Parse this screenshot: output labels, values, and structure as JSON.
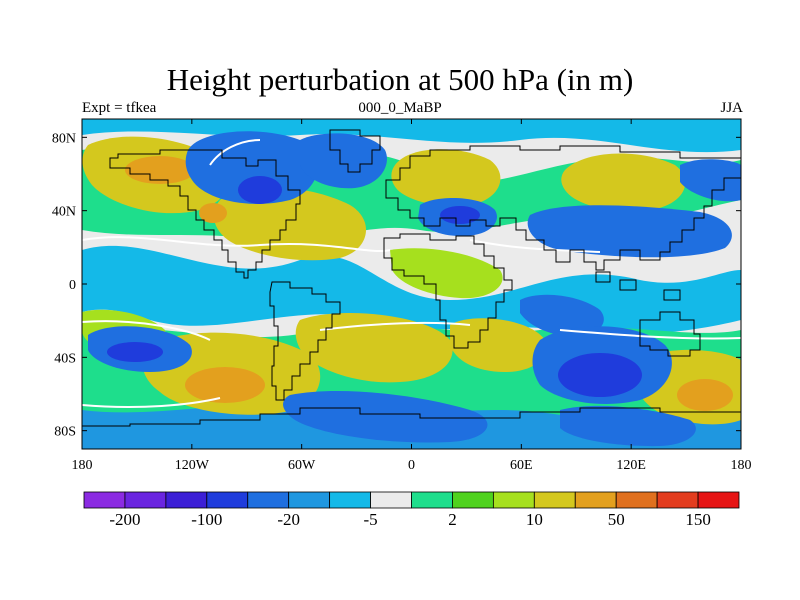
{
  "title": "Height perturbation at 500 hPa (in m)",
  "subtitles": {
    "left": "Expt = tfkea",
    "center": "000_0_MaBP",
    "right": "JJA"
  },
  "axes": {
    "lat_ticks": [
      {
        "value": 80,
        "label": "80N"
      },
      {
        "value": 40,
        "label": "40N"
      },
      {
        "value": 0,
        "label": "0"
      },
      {
        "value": -40,
        "label": "40S"
      },
      {
        "value": -80,
        "label": "80S"
      }
    ],
    "lon_ticks": [
      {
        "value": -180,
        "label": "180"
      },
      {
        "value": -120,
        "label": "120W"
      },
      {
        "value": -60,
        "label": "60W"
      },
      {
        "value": 0,
        "label": "0"
      },
      {
        "value": 60,
        "label": "60E"
      },
      {
        "value": 120,
        "label": "120E"
      },
      {
        "value": 180,
        "label": "180"
      }
    ],
    "lon_range": [
      -180,
      180
    ],
    "lat_range": [
      -90,
      90
    ]
  },
  "colorbar": {
    "colors": [
      "#8b2be2",
      "#6a25e0",
      "#3c1fd6",
      "#1f3cdc",
      "#1f6fe0",
      "#1f97e0",
      "#14b9e8",
      "#ebebeb",
      "#1ede8c",
      "#4fd21e",
      "#a6e01e",
      "#d4c81e",
      "#e3a01e",
      "#e0701e",
      "#e33c1e",
      "#e61414"
    ],
    "labels": [
      {
        "boundary": 1,
        "text": "-200"
      },
      {
        "boundary": 3,
        "text": "-100"
      },
      {
        "boundary": 5,
        "text": "-20"
      },
      {
        "boundary": 7,
        "text": "-5"
      },
      {
        "boundary": 9,
        "text": "2"
      },
      {
        "boundary": 11,
        "text": "10"
      },
      {
        "boundary": 13,
        "text": "50"
      },
      {
        "boundary": 15,
        "text": "150"
      }
    ]
  },
  "map_data": {
    "type": "filled_contour",
    "background_level_color": "#ebebeb",
    "features": [
      {
        "name": "north-pacific-high",
        "lon": -150,
        "lat": 60,
        "level": "50"
      },
      {
        "name": "north-america-low",
        "lon": -90,
        "lat": 58,
        "level": "-20"
      },
      {
        "name": "north-atlantic-high",
        "lon": -55,
        "lat": 40,
        "level": "50"
      },
      {
        "name": "europe-high",
        "lon": 15,
        "lat": 62,
        "level": "50"
      },
      {
        "name": "mediterranean-low",
        "lon": 25,
        "lat": 40,
        "level": "-20"
      },
      {
        "name": "siberia-high",
        "lon": 88,
        "lat": 62,
        "level": "50"
      },
      {
        "name": "east-asia-low",
        "lon": 100,
        "lat": 40,
        "level": "-20"
      },
      {
        "name": "south-pacific-high",
        "lon": -130,
        "lat": -55,
        "level": "50"
      },
      {
        "name": "south-atlantic-high",
        "lon": -10,
        "lat": -50,
        "level": "50"
      },
      {
        "name": "south-indian-low",
        "lon": 95,
        "lat": -52,
        "level": "-20"
      },
      {
        "name": "australia-south-high",
        "lon": 155,
        "lat": -55,
        "level": "50"
      }
    ]
  }
}
